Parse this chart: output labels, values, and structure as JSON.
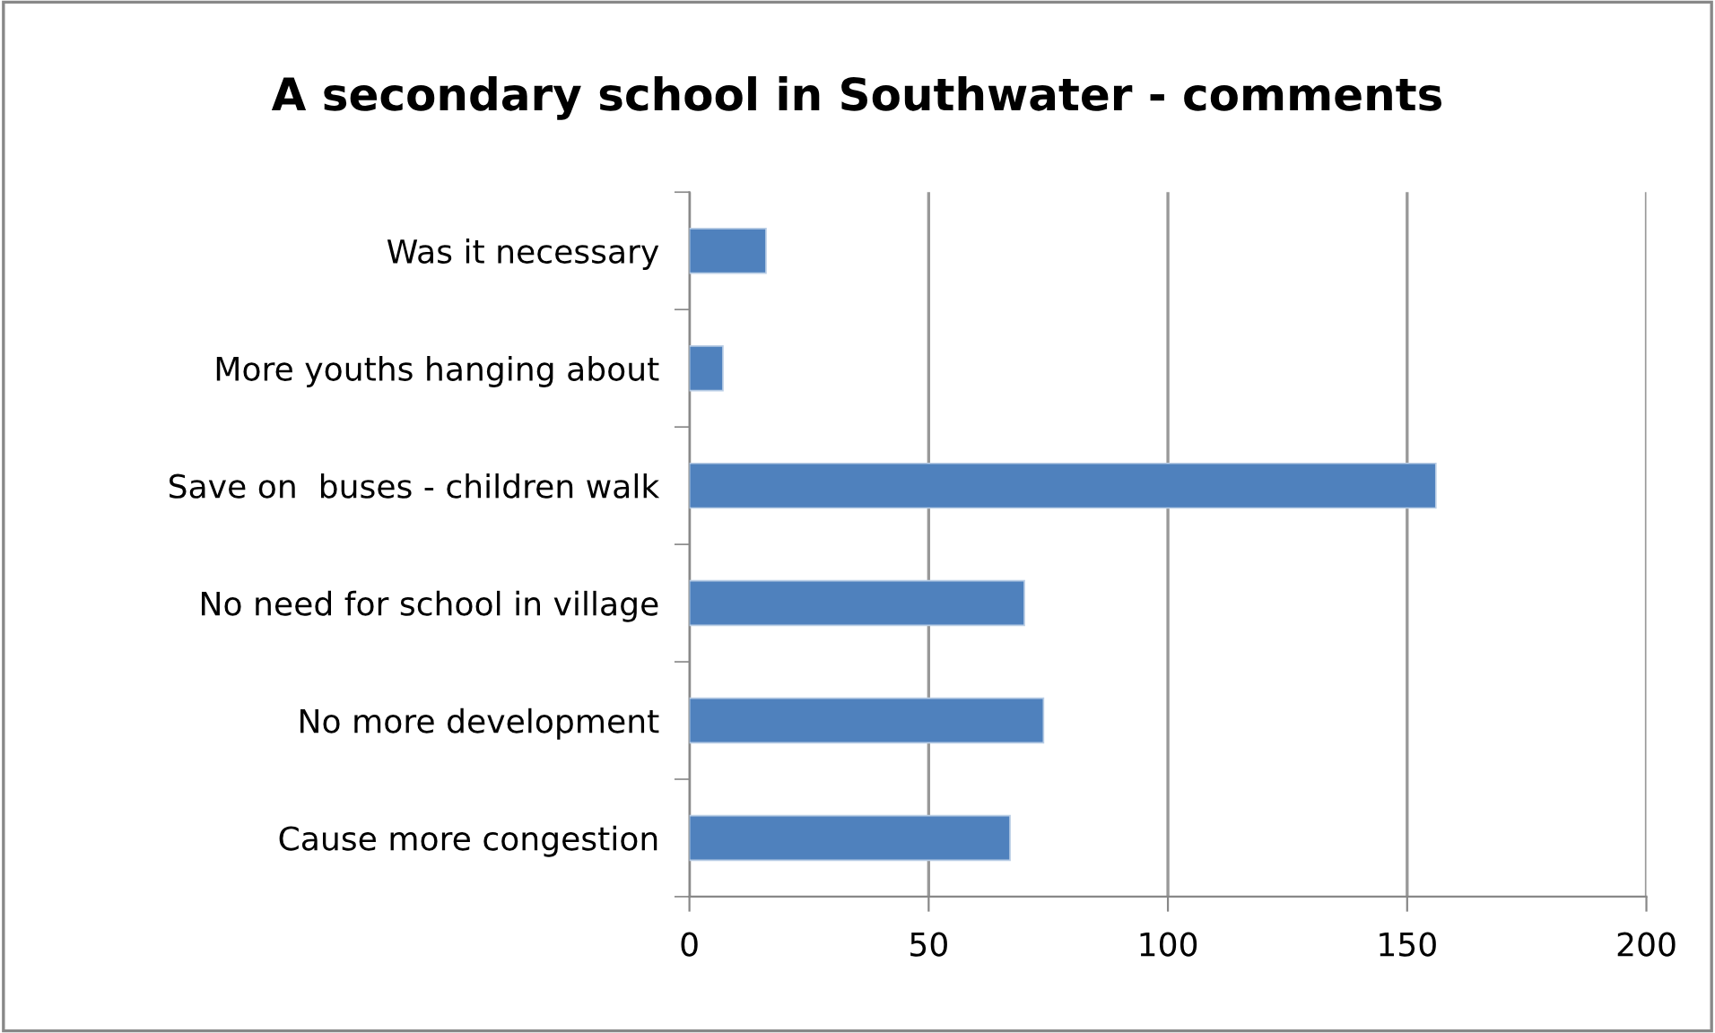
{
  "chart_data": {
    "type": "bar",
    "orientation": "horizontal",
    "title": "A secondary school in Southwater - comments",
    "categories": [
      "Was it necessary",
      "More youths hanging about",
      "Save on  buses - children walk",
      "No need for school in village",
      "No more development",
      "Cause more congestion"
    ],
    "values": [
      16,
      7,
      156,
      70,
      74,
      67
    ],
    "color": "#4f81bd",
    "xlim": [
      0,
      200
    ],
    "xticks": [
      0,
      50,
      100,
      150,
      200
    ],
    "grid": "x",
    "legend": false
  }
}
